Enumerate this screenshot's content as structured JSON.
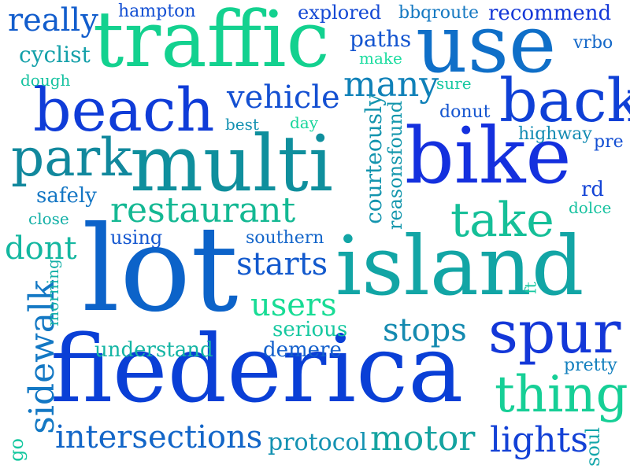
{
  "words": [
    {
      "text": "fiederica",
      "_c": "#0a3fd6"
    },
    {
      "text": "lot",
      "_c": "#0c63c9"
    },
    {
      "text": "island",
      "_c": "#12a5a5"
    },
    {
      "text": "multi",
      "_c": "#0f8f9d"
    },
    {
      "text": "traffic",
      "_c": "#13d18f"
    },
    {
      "text": "bike",
      "_c": "#1430de"
    },
    {
      "text": "use",
      "_c": "#0f6fc8"
    },
    {
      "text": "beach",
      "_c": "#0f3cd8"
    },
    {
      "text": "back",
      "_c": "#0f40d6"
    },
    {
      "text": "park",
      "_c": "#11889d"
    },
    {
      "text": "spur",
      "_c": "#1337d8"
    },
    {
      "text": "thing",
      "_c": "#16cf96"
    },
    {
      "text": "restaurant",
      "_c": "#14b893"
    },
    {
      "text": "take",
      "_c": "#15bf98"
    },
    {
      "text": "motor",
      "_c": "#14a3a0"
    },
    {
      "text": "intersections",
      "_c": "#1366c8"
    },
    {
      "text": "lights",
      "_c": "#1341d6"
    },
    {
      "text": "many",
      "_c": "#1081b8"
    },
    {
      "text": "vehicle",
      "_c": "#1450d2"
    },
    {
      "text": "really",
      "_c": "#125dcc"
    },
    {
      "text": "starts",
      "_c": "#1259cd"
    },
    {
      "text": "users",
      "_c": "#18dc95"
    },
    {
      "text": "stops",
      "_c": "#148ab0"
    },
    {
      "text": "dont",
      "_c": "#14b7a0"
    },
    {
      "text": "sidewalk",
      "_c": "#1378c4"
    },
    {
      "text": "protocol",
      "_c": "#1492b2"
    },
    {
      "text": "courteously",
      "_c": "#1394ae"
    },
    {
      "text": "reasonsfound",
      "_c": "#1497ad"
    },
    {
      "text": "explored",
      "_c": "#1449d4"
    },
    {
      "text": "bbqroute",
      "_c": "#1478c1"
    },
    {
      "text": "recommend",
      "_c": "#1437d7"
    },
    {
      "text": "hampton",
      "_c": "#1450d3"
    },
    {
      "text": "cyclist",
      "_c": "#14a0a9"
    },
    {
      "text": "paths",
      "_c": "#1455d0"
    },
    {
      "text": "make",
      "_c": "#1adc9f"
    },
    {
      "text": "vrbo",
      "_c": "#1468c8"
    },
    {
      "text": "dough",
      "_c": "#16c2a0"
    },
    {
      "text": "sure",
      "_c": "#16c8a0"
    },
    {
      "text": "donut",
      "_c": "#1455d0"
    },
    {
      "text": "best",
      "_c": "#1491b2"
    },
    {
      "text": "day",
      "_c": "#18d59b"
    },
    {
      "text": "highway",
      "_c": "#148cb3"
    },
    {
      "text": "pre",
      "_c": "#1450d3"
    },
    {
      "text": "safely",
      "_c": "#1476c4"
    },
    {
      "text": "rd",
      "_c": "#1444d6"
    },
    {
      "text": "close",
      "_c": "#14b0a7"
    },
    {
      "text": "dolce",
      "_c": "#16c2a0"
    },
    {
      "text": "using",
      "_c": "#1457d0"
    },
    {
      "text": "southern",
      "_c": "#1466ca"
    },
    {
      "text": "morning",
      "_c": "#14b0a7"
    },
    {
      "text": "ft",
      "_c": "#16c8a0"
    },
    {
      "text": "serious",
      "_c": "#16c8a0"
    },
    {
      "text": "understand",
      "_c": "#14b5a4"
    },
    {
      "text": "demere",
      "_c": "#1460cc"
    },
    {
      "text": "pretty",
      "_c": "#1480be"
    },
    {
      "text": "soul",
      "_c": "#14a6aa"
    },
    {
      "text": "go",
      "_c": "#16c8a0"
    }
  ]
}
